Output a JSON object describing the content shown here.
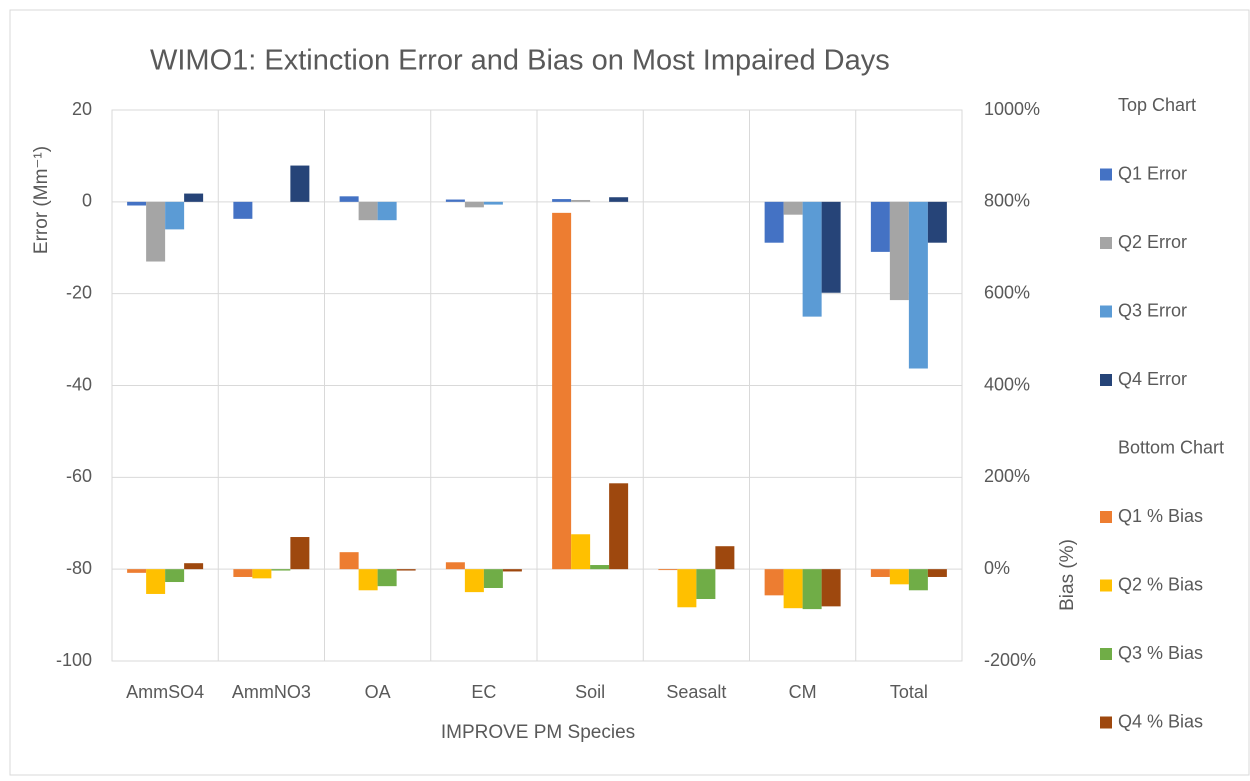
{
  "chart_data": {
    "type": "bar",
    "title": "WIMO1: Extinction Error and Bias on Most Impaired Days",
    "y_label": "Error (Mm⁻¹)",
    "y2_label": "Bias (%)",
    "x_label": "IMPROVE PM Species",
    "categories": [
      "AmmSO4",
      "AmmNO3",
      "OA",
      "EC",
      "Soil",
      "Seasalt",
      "CM",
      "Total"
    ],
    "legend_titles": [
      "Top Chart",
      "Bottom Chart"
    ],
    "series": [
      {
        "name": "Q1 Error",
        "color": "#4472c4",
        "values": [
          -0.8,
          -3.7,
          1.2,
          0.5,
          0.6,
          0,
          -8.9,
          -10.9
        ]
      },
      {
        "name": "Q2 Error",
        "color": "#a5a5a5",
        "values": [
          -13,
          0,
          -4,
          -1.2,
          0.4,
          0,
          -2.8,
          -21.4
        ]
      },
      {
        "name": "Q3 Error",
        "color": "#5b9bd5",
        "values": [
          -6,
          0,
          -4,
          -0.6,
          0,
          0,
          -25,
          -36.3
        ]
      },
      {
        "name": "Q4 Error",
        "color": "#264478",
        "values": [
          1.8,
          7.9,
          0,
          0,
          1,
          0,
          -19.8,
          -8.9
        ]
      },
      {
        "name": "Q1 % Bias",
        "color": "#ed7d31",
        "axis": "y2",
        "values": [
          -8,
          -17,
          37,
          15,
          776,
          -2,
          -57,
          -17
        ]
      },
      {
        "name": "Q2 % Bias",
        "color": "#ffc000",
        "axis": "y2",
        "values": [
          -54,
          -20,
          -46,
          -50,
          76,
          -83,
          -85,
          -33
        ]
      },
      {
        "name": "Q3 % Bias",
        "color": "#70ad47",
        "axis": "y2",
        "values": [
          -28,
          -3,
          -37,
          -41,
          9,
          -65,
          -87,
          -46
        ]
      },
      {
        "name": "Q4 % Bias",
        "color": "#9e480e",
        "axis": "y2",
        "values": [
          13,
          70,
          -3,
          -5,
          187,
          50,
          -81,
          -17
        ]
      }
    ],
    "ylim": [
      -100,
      20
    ],
    "yticks": [
      -100,
      -80,
      -60,
      -40,
      -20,
      0,
      20
    ],
    "y2lim": [
      -200,
      1000
    ],
    "y2ticks": [
      {
        "value": -200,
        "label": "-200%"
      },
      {
        "value": 0,
        "label": "0%"
      },
      {
        "value": 200,
        "label": "200%"
      },
      {
        "value": 400,
        "label": "400%"
      },
      {
        "value": 600,
        "label": "600%"
      },
      {
        "value": 800,
        "label": "800%"
      },
      {
        "value": 1000,
        "label": "1000%"
      }
    ],
    "grid": true,
    "legend": "right"
  }
}
